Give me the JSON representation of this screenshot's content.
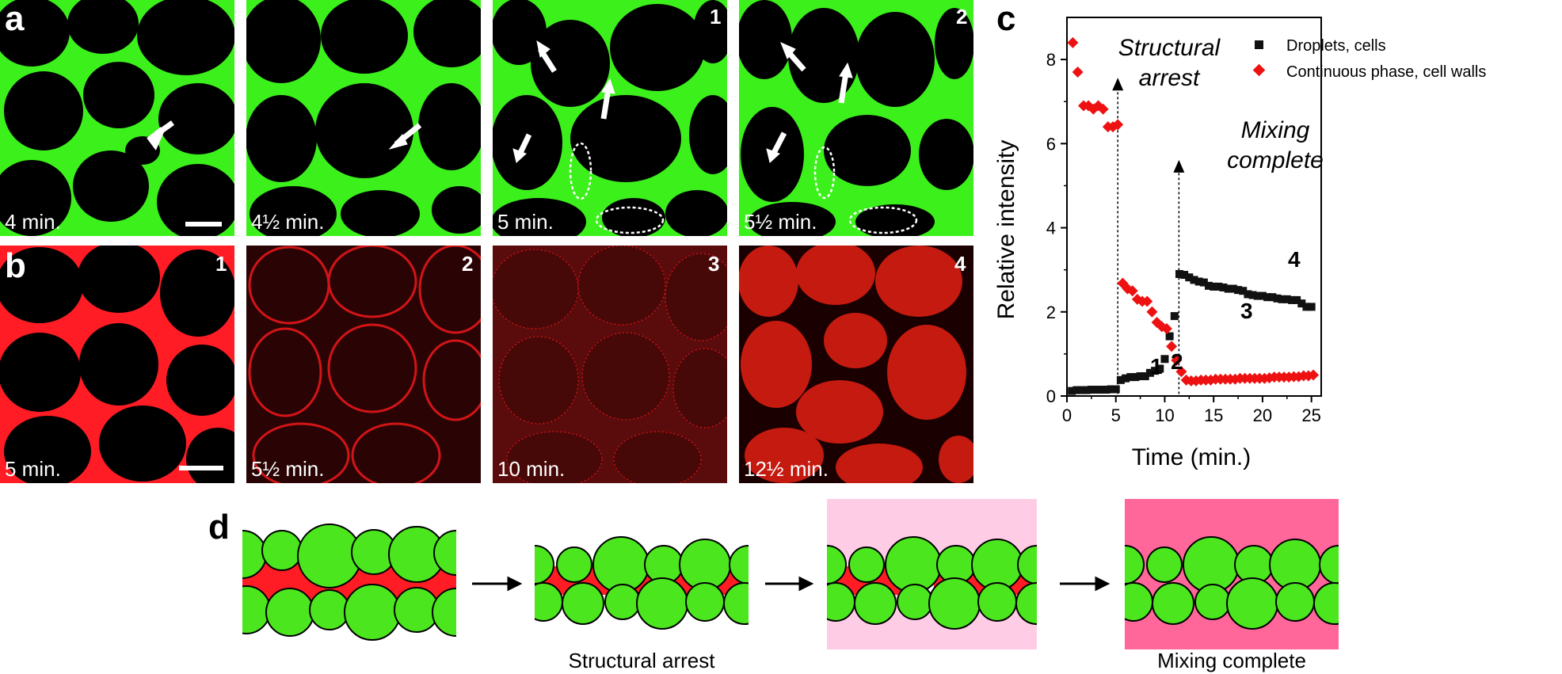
{
  "panel_letters": {
    "a": "a",
    "b": "b",
    "c": "c",
    "d": "d"
  },
  "row_a": [
    {
      "time": "4 min.",
      "num": ""
    },
    {
      "time": "4½ min.",
      "num": ""
    },
    {
      "time": "5 min.",
      "num": "1"
    },
    {
      "time": "5½ min.",
      "num": "2"
    }
  ],
  "row_b": [
    {
      "time": "5 min.",
      "num": "1"
    },
    {
      "time": "5½ min.",
      "num": "2"
    },
    {
      "time": "10 min.",
      "num": "3"
    },
    {
      "time": "12½ min.",
      "num": "4"
    }
  ],
  "colors": {
    "cell_wall_green": "#3cf01c",
    "continuous_red": "#ff1c24",
    "pink_light": "#ffcce6",
    "pink_dark": "#ff6699",
    "droplet_marker": "#111111",
    "continuous_marker": "#ee1111"
  },
  "chart_data": {
    "type": "scatter",
    "xlabel": "Time (min.)",
    "ylabel": "Relative intensity",
    "xlim": [
      0,
      26
    ],
    "ylim": [
      0,
      9
    ],
    "xticks": [
      0,
      5,
      10,
      15,
      20,
      25
    ],
    "yticks": [
      0,
      2,
      4,
      6,
      8
    ],
    "legend_position": "top-right",
    "series": [
      {
        "name": "Droplets, cells",
        "marker": "square",
        "color": "#111111",
        "x": [
          0.5,
          1.0,
          1.5,
          2.0,
          2.5,
          3.0,
          3.5,
          4.0,
          4.5,
          5.0,
          5.5,
          6.0,
          6.5,
          7.0,
          7.5,
          8.0,
          8.5,
          9.0,
          9.5,
          10.0,
          10.5,
          11.0,
          11.5,
          12.0,
          12.5,
          13.0,
          13.5,
          14.0,
          14.5,
          15.0,
          15.5,
          16.0,
          16.5,
          17.0,
          17.5,
          18.0,
          18.5,
          19.0,
          19.5,
          20.0,
          20.5,
          21.0,
          21.5,
          22.0,
          22.5,
          23.0,
          23.5,
          24.0,
          24.5,
          25.0
        ],
        "y": [
          0.12,
          0.14,
          0.14,
          0.14,
          0.15,
          0.15,
          0.15,
          0.15,
          0.16,
          0.16,
          0.38,
          0.42,
          0.45,
          0.45,
          0.47,
          0.47,
          0.55,
          0.6,
          0.65,
          0.88,
          1.42,
          1.9,
          2.9,
          2.88,
          2.82,
          2.76,
          2.72,
          2.7,
          2.62,
          2.6,
          2.6,
          2.58,
          2.55,
          2.55,
          2.52,
          2.5,
          2.42,
          2.4,
          2.38,
          2.38,
          2.35,
          2.35,
          2.32,
          2.3,
          2.3,
          2.28,
          2.28,
          2.2,
          2.12,
          2.12
        ]
      },
      {
        "name": "Continuous phase, cell walls",
        "marker": "diamond",
        "color": "#ee1111",
        "x": [
          0.6,
          1.1,
          1.7,
          2.2,
          2.7,
          3.2,
          3.7,
          4.2,
          4.7,
          5.2,
          5.7,
          6.2,
          6.7,
          7.2,
          7.7,
          8.2,
          8.7,
          9.2,
          9.7,
          10.2,
          10.7,
          11.2,
          11.7,
          12.2,
          12.7,
          13.2,
          13.7,
          14.2,
          14.7,
          15.2,
          15.7,
          16.2,
          16.7,
          17.2,
          17.7,
          18.2,
          18.7,
          19.2,
          19.7,
          20.2,
          20.7,
          21.2,
          21.7,
          22.2,
          22.7,
          23.2,
          23.7,
          24.2,
          24.7,
          25.2
        ],
        "y": [
          8.4,
          7.7,
          6.9,
          6.9,
          6.82,
          6.9,
          6.82,
          6.4,
          6.4,
          6.45,
          2.68,
          2.55,
          2.5,
          2.3,
          2.25,
          2.25,
          2.0,
          1.75,
          1.65,
          1.6,
          1.18,
          0.85,
          0.58,
          0.38,
          0.36,
          0.36,
          0.38,
          0.38,
          0.38,
          0.4,
          0.4,
          0.4,
          0.4,
          0.4,
          0.42,
          0.42,
          0.42,
          0.42,
          0.42,
          0.42,
          0.43,
          0.45,
          0.45,
          0.45,
          0.45,
          0.46,
          0.46,
          0.48,
          0.48,
          0.5
        ]
      }
    ],
    "annotations": [
      {
        "text": "Structural",
        "italic": true
      },
      {
        "text": "arrest",
        "italic": true
      },
      {
        "text": "Mixing",
        "italic": true
      },
      {
        "text": "complete",
        "italic": true
      }
    ],
    "point_labels": [
      "1",
      "2",
      "3",
      "4"
    ]
  },
  "schematic": {
    "caption_2": "Structural arrest",
    "caption_4": "Mixing complete"
  }
}
